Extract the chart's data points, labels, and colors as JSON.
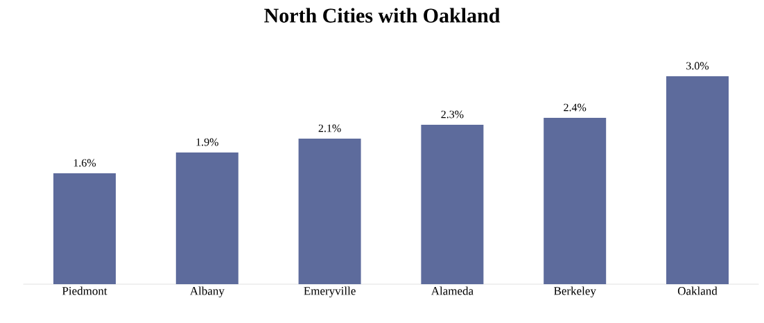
{
  "chart_data": {
    "type": "bar",
    "title": "North Cities with Oakland",
    "categories": [
      "Piedmont",
      "Albany",
      "Emeryville",
      "Alameda",
      "Berkeley",
      "Oakland"
    ],
    "values": [
      1.6,
      1.9,
      2.1,
      2.3,
      2.4,
      3.0
    ],
    "value_labels": [
      "1.6%",
      "1.9%",
      "2.1%",
      "2.3%",
      "2.4%",
      "3.0%"
    ],
    "color": "#5d6b9c"
  }
}
